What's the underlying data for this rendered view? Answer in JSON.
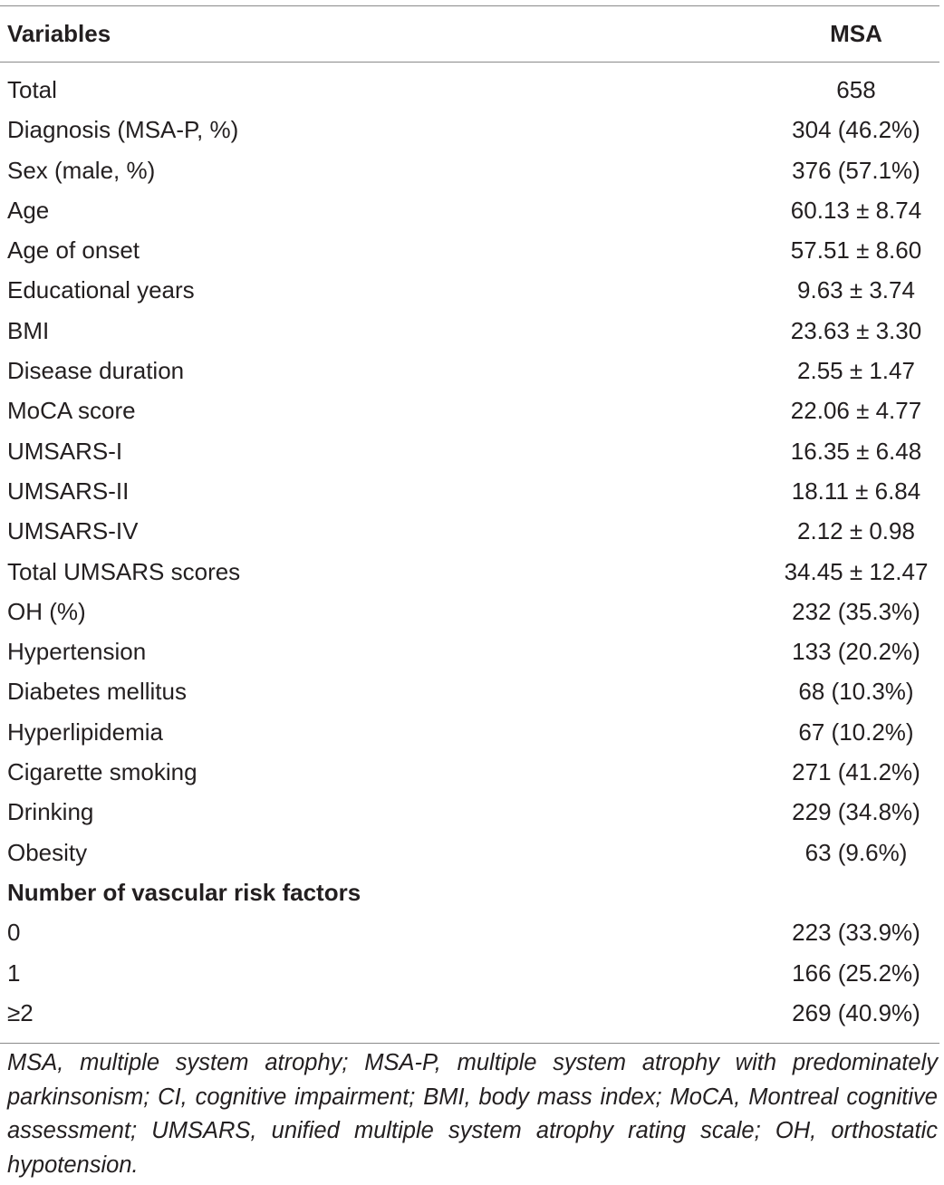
{
  "table": {
    "headers": [
      "Variables",
      "MSA"
    ],
    "rows": [
      {
        "label": "Total",
        "value": "658"
      },
      {
        "label": "Diagnosis (MSA-P, %)",
        "value": "304 (46.2%)"
      },
      {
        "label": "Sex (male, %)",
        "value": "376 (57.1%)"
      },
      {
        "label": "Age",
        "value": "60.13 ± 8.74"
      },
      {
        "label": "Age of onset",
        "value": "57.51 ± 8.60"
      },
      {
        "label": "Educational years",
        "value": "9.63 ± 3.74"
      },
      {
        "label": "BMI",
        "value": "23.63 ± 3.30"
      },
      {
        "label": "Disease duration",
        "value": "2.55 ± 1.47"
      },
      {
        "label": "MoCA score",
        "value": "22.06 ± 4.77"
      },
      {
        "label": "UMSARS-I",
        "value": "16.35 ± 6.48"
      },
      {
        "label": "UMSARS-II",
        "value": "18.11 ± 6.84"
      },
      {
        "label": "UMSARS-IV",
        "value": "2.12 ± 0.98"
      },
      {
        "label": "Total UMSARS scores",
        "value": "34.45 ± 12.47"
      },
      {
        "label": "OH (%)",
        "value": "232 (35.3%)"
      },
      {
        "label": "Hypertension",
        "value": "133 (20.2%)"
      },
      {
        "label": "Diabetes mellitus",
        "value": "68 (10.3%)"
      },
      {
        "label": "Hyperlipidemia",
        "value": "67 (10.2%)"
      },
      {
        "label": "Cigarette smoking",
        "value": "271 (41.2%)"
      },
      {
        "label": "Drinking",
        "value": "229 (34.8%)"
      },
      {
        "label": "Obesity",
        "value": "63 (9.6%)"
      },
      {
        "label": "Number of vascular risk factors",
        "value": "",
        "section": true
      },
      {
        "label": "0",
        "value": "223 (33.9%)"
      },
      {
        "label": "1",
        "value": "166 (25.2%)"
      },
      {
        "label": "≥2",
        "value": "269 (40.9%)"
      }
    ]
  },
  "footnote": "MSA, multiple system atrophy; MSA-P, multiple system atrophy with predominately parkinsonism; CI, cognitive impairment; BMI, body mass index; MoCA, Montreal cognitive assessment; UMSARS, unified multiple system atrophy rating scale; OH, orthostatic hypotension."
}
